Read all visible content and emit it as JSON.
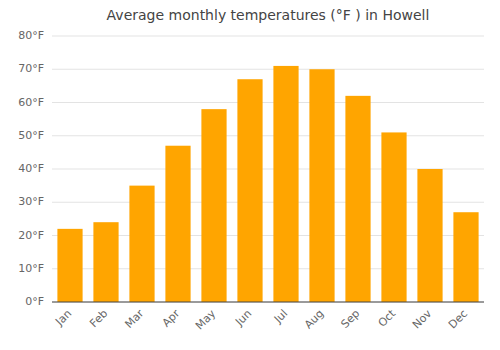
{
  "chart_data": {
    "type": "bar",
    "title": "Average monthly temperatures (°F ) in Howell",
    "categories": [
      "Jan",
      "Feb",
      "Mar",
      "Apr",
      "May",
      "Jun",
      "Jul",
      "Aug",
      "Sep",
      "Oct",
      "Nov",
      "Dec"
    ],
    "values": [
      22,
      24,
      35,
      47,
      58,
      67,
      71,
      70,
      62,
      51,
      40,
      27
    ],
    "color": "#FFA500",
    "ylim": [
      0,
      80
    ],
    "yticks": [
      {
        "value": 0,
        "label": "0°F"
      },
      {
        "value": 10,
        "label": "10°F"
      },
      {
        "value": 20,
        "label": "20°F"
      },
      {
        "value": 30,
        "label": "30°F"
      },
      {
        "value": 40,
        "label": "40°F"
      },
      {
        "value": 50,
        "label": "50°F"
      },
      {
        "value": 60,
        "label": "60°F"
      },
      {
        "value": 70,
        "label": "70°F"
      },
      {
        "value": 80,
        "label": "80°F"
      }
    ],
    "grid": true
  }
}
